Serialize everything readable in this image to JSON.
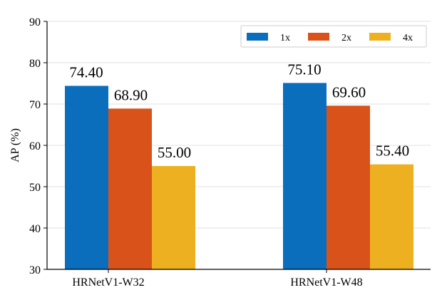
{
  "chart_data": {
    "type": "bar",
    "categories": [
      "HRNetV1-W32",
      "HRNetV1-W48"
    ],
    "series": [
      {
        "name": "1x",
        "values": [
          74.4,
          75.1
        ],
        "color": "#0a6ebd"
      },
      {
        "name": "2x",
        "values": [
          68.9,
          69.6
        ],
        "color": "#d95219"
      },
      {
        "name": "4x",
        "values": [
          55.0,
          55.4
        ],
        "color": "#edb020"
      }
    ],
    "data_labels": [
      [
        "74.40",
        "75.10"
      ],
      [
        "68.90",
        "69.60"
      ],
      [
        "55.00",
        "55.40"
      ]
    ],
    "title": "",
    "xlabel": "",
    "ylabel": "AP (%)",
    "ylim": [
      30,
      90
    ],
    "yticks": [
      30,
      40,
      50,
      60,
      70,
      80,
      90
    ],
    "grid": true,
    "legend_position": "top-right",
    "legend_columns": 3
  }
}
